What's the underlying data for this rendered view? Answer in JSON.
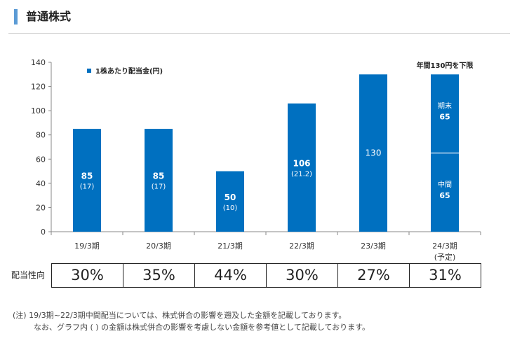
{
  "section_title": "普通株式",
  "chart_data": {
    "type": "bar",
    "categories": [
      "19/3期",
      "20/3期",
      "21/3期",
      "22/3期",
      "23/3期",
      "24/3期"
    ],
    "category_sublabels": [
      "",
      "",
      "",
      "",
      "",
      "(予定)"
    ],
    "legend": "1株あたり配当金(円)",
    "legend_position": "top-left",
    "values": [
      85,
      85,
      50,
      106,
      130,
      130
    ],
    "value_labels": [
      "85",
      "85",
      "50",
      "106",
      "130",
      ""
    ],
    "sub_labels": [
      "(17)",
      "(17)",
      "(10)",
      "(21.2)",
      "",
      ""
    ],
    "stacked_last": {
      "segments": [
        {
          "name": "中間",
          "value": 65
        },
        {
          "name": "期末",
          "value": 65
        }
      ]
    },
    "annotation": "年間130円を下限",
    "ylim": [
      0,
      140
    ],
    "yticks": [
      0,
      20,
      40,
      60,
      80,
      100,
      120,
      140
    ],
    "color": "#0070c0",
    "grid": false
  },
  "payout": {
    "label": "配当性向",
    "values": [
      "30%",
      "35%",
      "44%",
      "30%",
      "27%",
      "31%"
    ]
  },
  "notes": [
    "(注) 19/3期~22/3期中間配当については、株式併合の影響を遡及した金額を記載しております。",
    "なお、グラフ内 ( ) の金額は株式併合の影響を考慮しない金額を参考値として記載しております。"
  ]
}
